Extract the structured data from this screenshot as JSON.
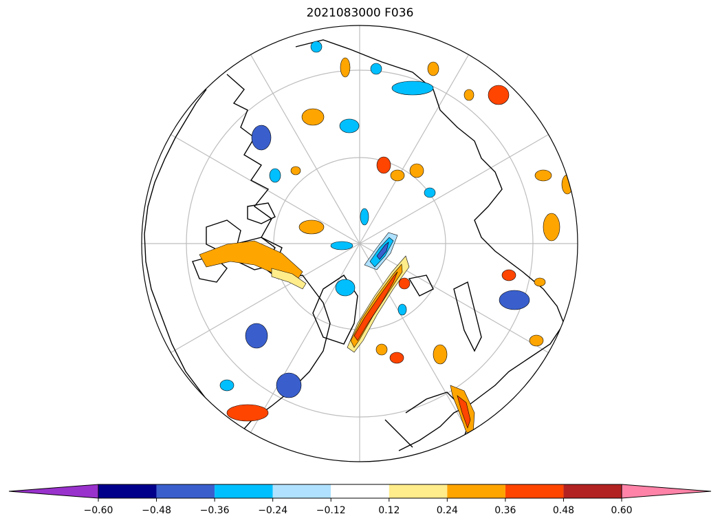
{
  "title": "2021083000 F036",
  "map": {
    "projection": "north-polar-stereographic",
    "graticule_color": "#bdbdbd",
    "coastline_color": "#000000"
  },
  "colorbar": {
    "extend": "both",
    "levels": [
      -0.6,
      -0.48,
      -0.36,
      -0.24,
      -0.12,
      0.12,
      0.24,
      0.36,
      0.48,
      0.6
    ],
    "tick_labels": [
      "−0.60",
      "−0.48",
      "−0.36",
      "−0.24",
      "−0.12",
      "0.12",
      "0.24",
      "0.36",
      "0.48",
      "0.60"
    ],
    "colors": [
      "#9932CC",
      "#00008B",
      "#3A5FCD",
      "#00BFFF",
      "#B0E2FF",
      "#FFFFFF",
      "#FFEC8B",
      "#FFA500",
      "#FF4500",
      "#B22222",
      "#FF83A8"
    ]
  }
}
